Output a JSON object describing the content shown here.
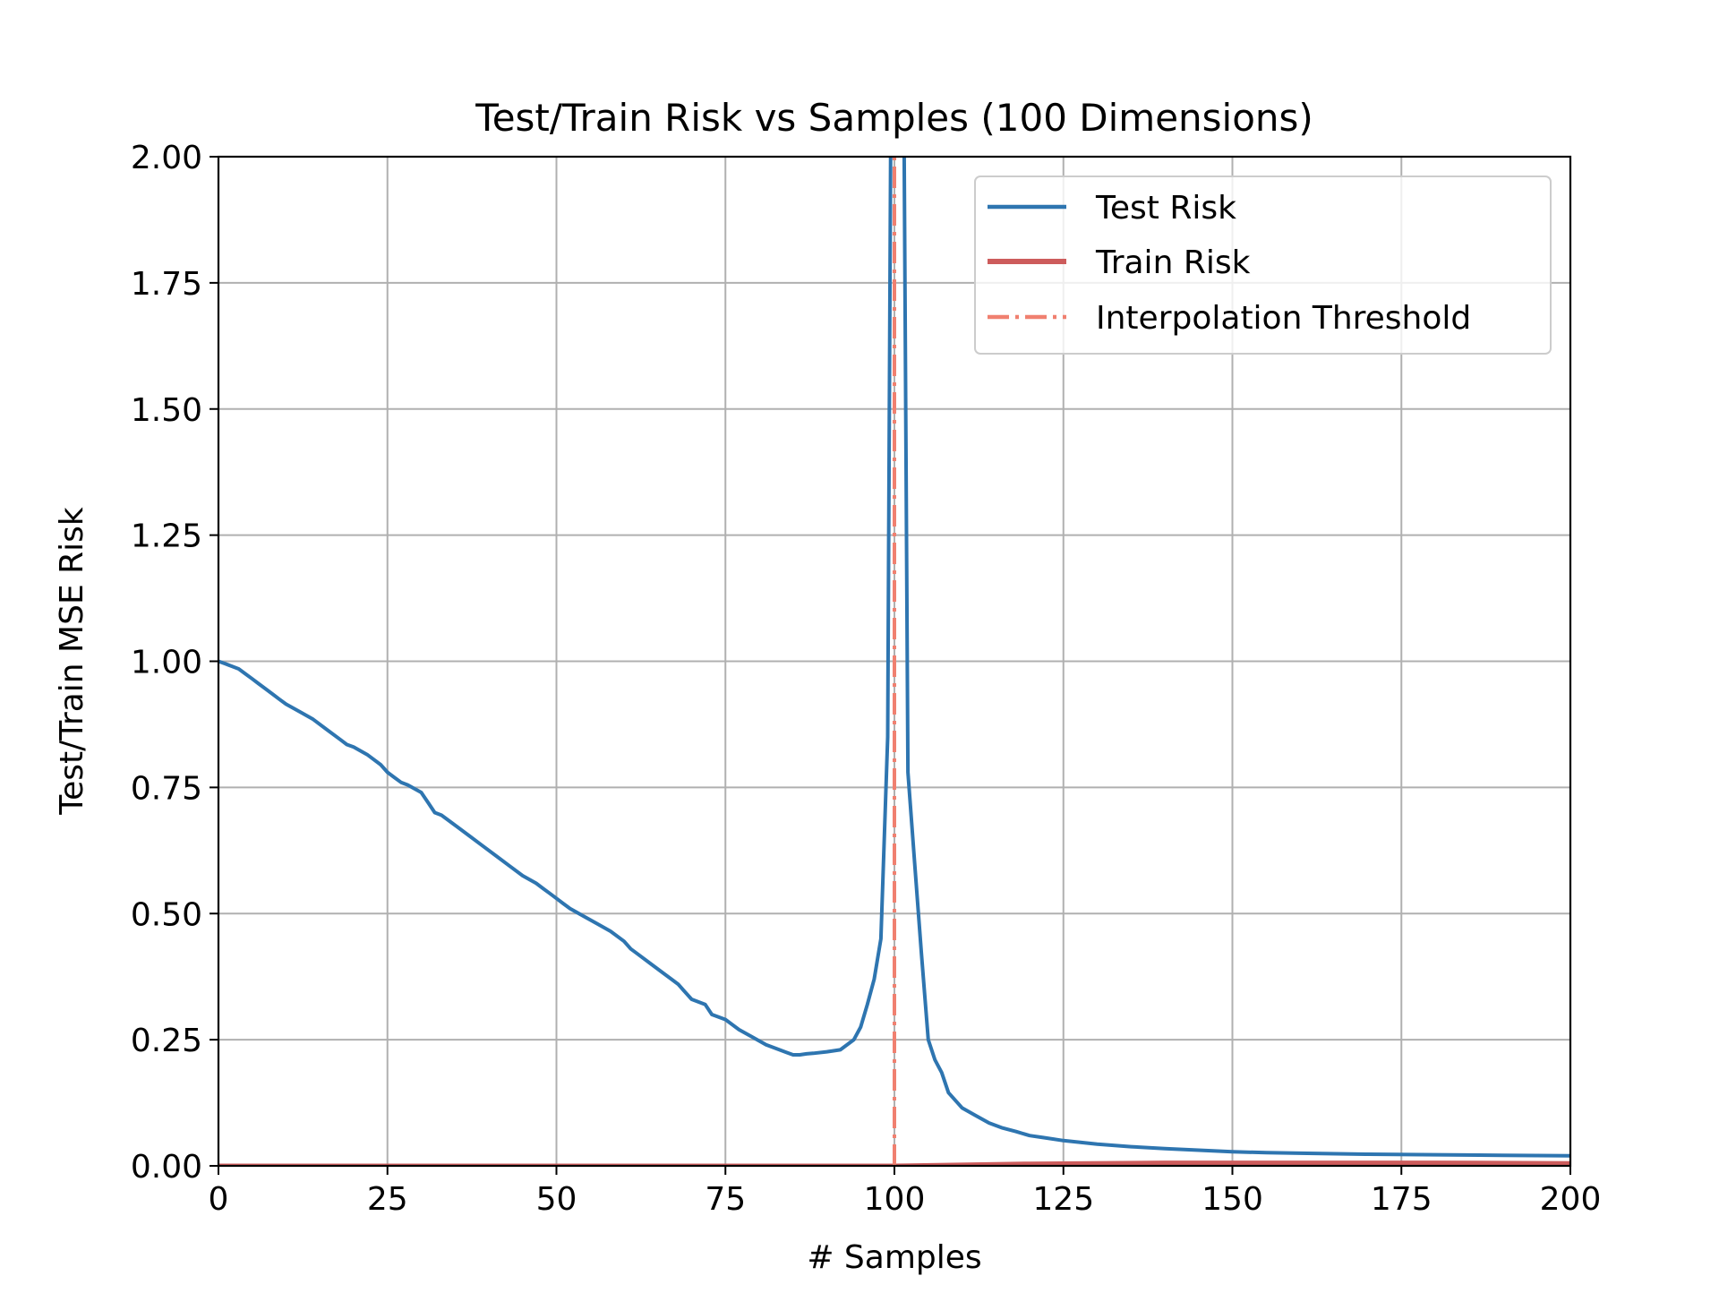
{
  "chart_data": {
    "type": "line",
    "title": "Test/Train Risk vs Samples (100 Dimensions)",
    "xlabel": "# Samples",
    "ylabel": "Test/Train MSE Risk",
    "xlim": [
      0,
      200
    ],
    "ylim": [
      0,
      2.0
    ],
    "x_ticks": [
      0,
      25,
      50,
      75,
      100,
      125,
      150,
      175,
      200
    ],
    "x_tick_labels": [
      "0",
      "25",
      "50",
      "75",
      "100",
      "125",
      "150",
      "175",
      "200"
    ],
    "y_ticks": [
      0,
      0.25,
      0.5,
      0.75,
      1.0,
      1.25,
      1.5,
      1.75,
      2.0
    ],
    "y_tick_labels": [
      "0.00",
      "0.25",
      "0.50",
      "0.75",
      "1.00",
      "1.25",
      "1.50",
      "1.75",
      "2.00"
    ],
    "grid": true,
    "legend_position": "top-right",
    "series": [
      {
        "name": "Test Risk",
        "color": "#2e75b0",
        "style": "solid",
        "x": [
          0,
          1,
          2,
          3,
          4,
          5,
          6,
          7,
          8,
          9,
          10,
          12,
          14,
          16,
          18,
          19,
          20,
          22,
          24,
          25,
          26,
          27,
          28,
          30,
          31,
          32,
          33,
          35,
          37,
          39,
          41,
          43,
          45,
          47,
          48,
          49,
          50,
          51,
          52,
          54,
          56,
          58,
          60,
          61,
          62,
          64,
          66,
          67,
          68,
          69,
          70,
          72,
          73,
          75,
          77,
          79,
          81,
          83,
          84,
          85,
          86,
          87,
          88,
          90,
          91,
          92,
          94,
          95,
          96,
          97,
          98,
          99,
          100,
          101,
          102,
          103,
          104,
          105,
          106,
          107,
          108,
          110,
          112,
          114,
          116,
          118,
          120,
          122,
          125,
          130,
          135,
          140,
          145,
          150,
          155,
          160,
          170,
          180,
          190,
          200
        ],
        "values": [
          1.0,
          0.995,
          0.99,
          0.985,
          0.975,
          0.965,
          0.955,
          0.945,
          0.935,
          0.925,
          0.915,
          0.9,
          0.885,
          0.865,
          0.845,
          0.835,
          0.83,
          0.815,
          0.795,
          0.78,
          0.77,
          0.76,
          0.755,
          0.74,
          0.72,
          0.7,
          0.695,
          0.675,
          0.655,
          0.635,
          0.615,
          0.595,
          0.575,
          0.56,
          0.55,
          0.54,
          0.53,
          0.52,
          0.51,
          0.495,
          0.48,
          0.465,
          0.445,
          0.43,
          0.42,
          0.4,
          0.38,
          0.37,
          0.36,
          0.345,
          0.33,
          0.32,
          0.3,
          0.29,
          0.27,
          0.255,
          0.24,
          0.23,
          0.225,
          0.22,
          0.22,
          0.222,
          0.223,
          0.226,
          0.228,
          0.23,
          0.25,
          0.275,
          0.32,
          0.37,
          0.45,
          0.85,
          3.5,
          3.0,
          0.78,
          0.6,
          0.42,
          0.25,
          0.21,
          0.185,
          0.145,
          0.115,
          0.1,
          0.085,
          0.075,
          0.068,
          0.06,
          0.056,
          0.05,
          0.043,
          0.038,
          0.034,
          0.031,
          0.028,
          0.026,
          0.025,
          0.023,
          0.022,
          0.021,
          0.02
        ]
      },
      {
        "name": "Train Risk",
        "color": "#cd5c5c",
        "style": "solid",
        "x": [
          0,
          50,
          100,
          120,
          140,
          160,
          180,
          200
        ],
        "values": [
          0.0,
          0.0,
          0.0,
          0.004,
          0.006,
          0.006,
          0.006,
          0.005
        ]
      },
      {
        "name": "Interpolation Threshold",
        "color": "#f08070",
        "style": "dashdot",
        "x": [
          100,
          100
        ],
        "values": [
          0,
          2.0
        ]
      }
    ]
  }
}
